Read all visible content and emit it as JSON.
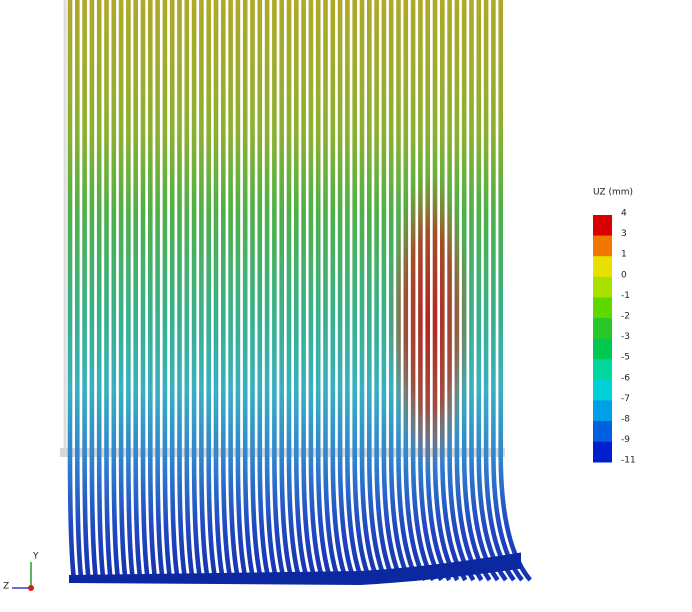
{
  "legend": {
    "title": "UZ (mm)",
    "labels": [
      4,
      3,
      1,
      0,
      -1,
      -2,
      -3,
      -5,
      -6,
      -7,
      -8,
      -9,
      -11
    ],
    "colors": [
      "#d80000",
      "#f07800",
      "#e8e000",
      "#a8e000",
      "#60d800",
      "#28c828",
      "#00c850",
      "#00d8a0",
      "#00d0d8",
      "#00a0e8",
      "#0060e0",
      "#0020d0"
    ]
  },
  "triad": {
    "y": "Y",
    "z": "Z"
  }
}
